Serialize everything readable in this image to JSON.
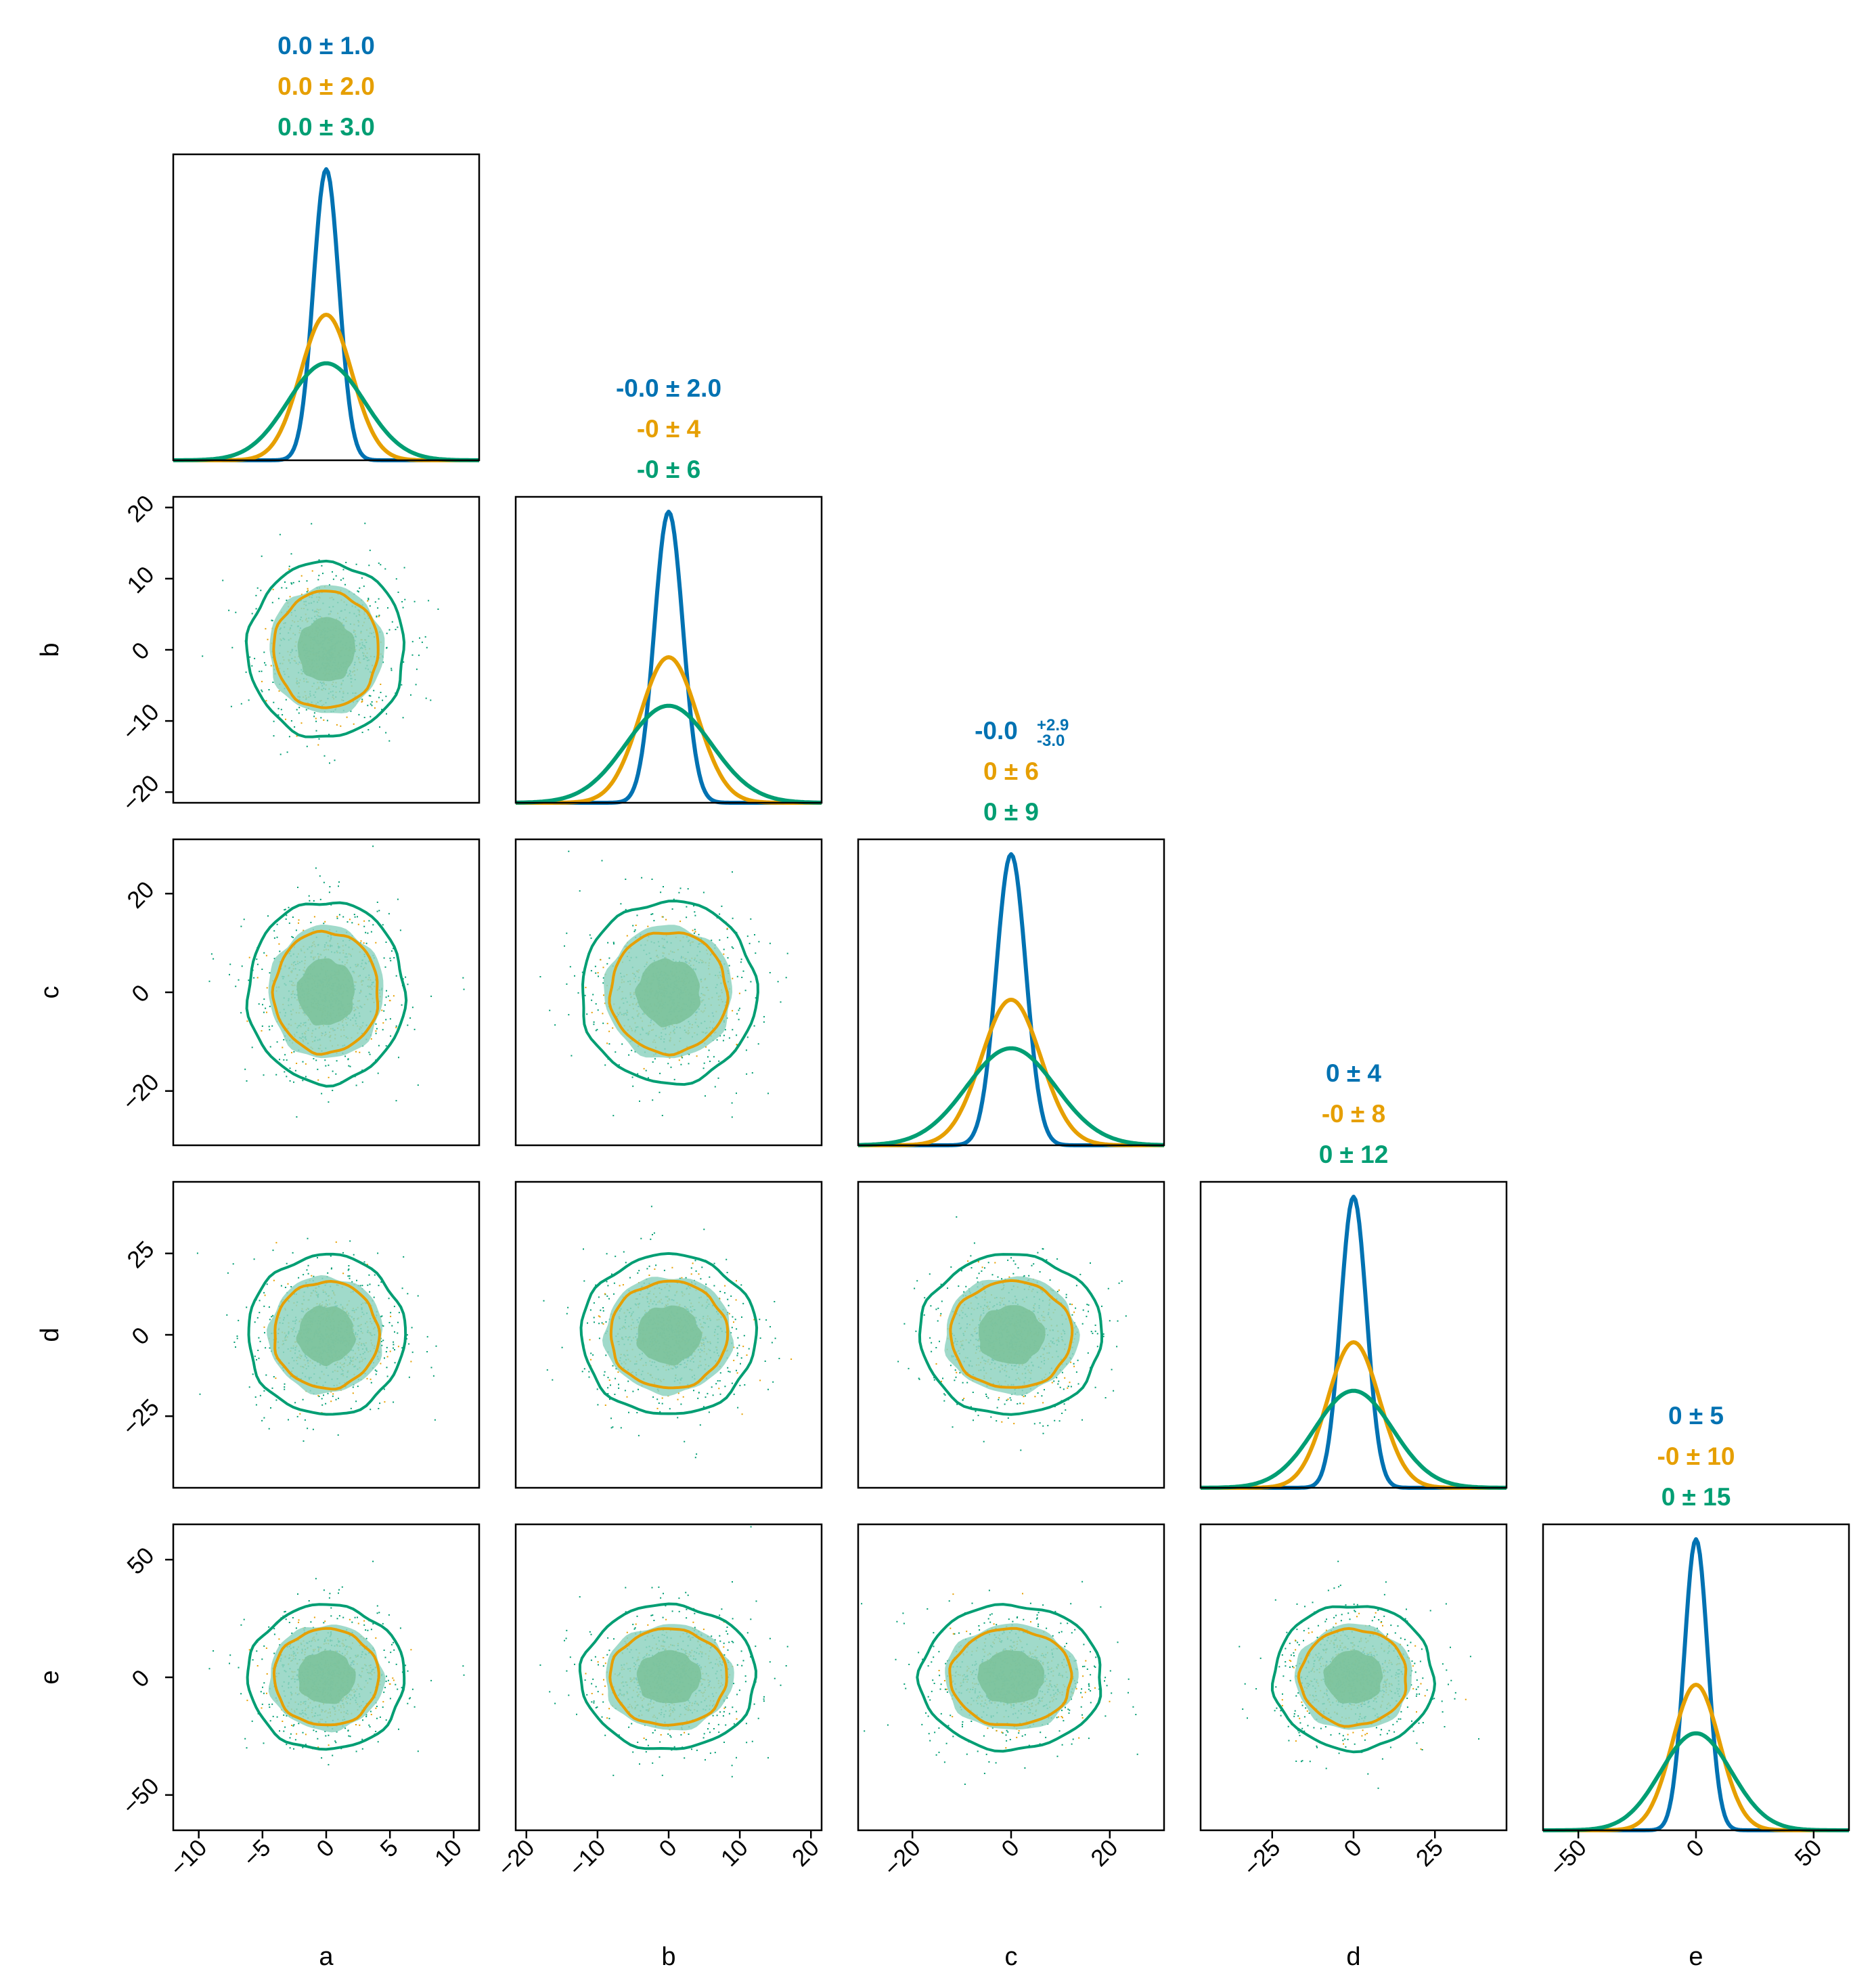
{
  "chart_data": {
    "type": "corner",
    "colors": [
      "#0072b2",
      "#e69f00",
      "#009e73"
    ],
    "series": [
      {
        "sigma": {
          "a": 1,
          "b": 2,
          "c": 3,
          "d": 4,
          "e": 5
        }
      },
      {
        "sigma": {
          "a": 2,
          "b": 4,
          "c": 6,
          "d": 8,
          "e": 10
        }
      },
      {
        "sigma": {
          "a": 3,
          "b": 6,
          "c": 9,
          "d": 12,
          "e": 15
        }
      }
    ],
    "parameters": [
      {
        "label": "a",
        "range": [
          -12,
          12
        ],
        "ticks": [
          -10,
          -5,
          0,
          5,
          10
        ],
        "tick_labels": [
          "−10",
          "−5",
          "0",
          "5",
          "10"
        ],
        "stats": [
          {
            "text": "0.0 ± 1.0"
          },
          {
            "text": "0.0 ± 2.0"
          },
          {
            "text": "0.0 ± 3.0"
          }
        ]
      },
      {
        "label": "b",
        "range": [
          -21.5,
          21.5
        ],
        "ticks": [
          -20,
          -10,
          0,
          10,
          20
        ],
        "tick_labels": [
          "−20",
          "−10",
          "0",
          "10",
          "20"
        ],
        "stats": [
          {
            "text": "-0.0 ± 2.0"
          },
          {
            "text": "-0 ± 4"
          },
          {
            "text": "-0 ± 6"
          }
        ]
      },
      {
        "label": "c",
        "range": [
          -31,
          31
        ],
        "ticks": [
          -20,
          0,
          20
        ],
        "tick_labels": [
          "−20",
          "0",
          "20"
        ],
        "stats": [
          {
            "text": "-0.0",
            "sup": "+2.9",
            "sub": "-3.0"
          },
          {
            "text": "0 ± 6"
          },
          {
            "text": "0 ± 9"
          }
        ]
      },
      {
        "label": "d",
        "range": [
          -47,
          47
        ],
        "ticks": [
          -25,
          0,
          25
        ],
        "tick_labels": [
          "−25",
          "0",
          "25"
        ],
        "stats": [
          {
            "text": "0 ± 4"
          },
          {
            "text": "-0 ± 8"
          },
          {
            "text": "0 ± 12"
          }
        ]
      },
      {
        "label": "e",
        "range": [
          -65,
          65
        ],
        "ticks": [
          -50,
          0,
          50
        ],
        "tick_labels": [
          "−50",
          "0",
          "50"
        ],
        "stats": [
          {
            "text": "0 ± 5"
          },
          {
            "text": "-0 ± 10"
          },
          {
            "text": "0 ± 15"
          }
        ]
      }
    ]
  }
}
